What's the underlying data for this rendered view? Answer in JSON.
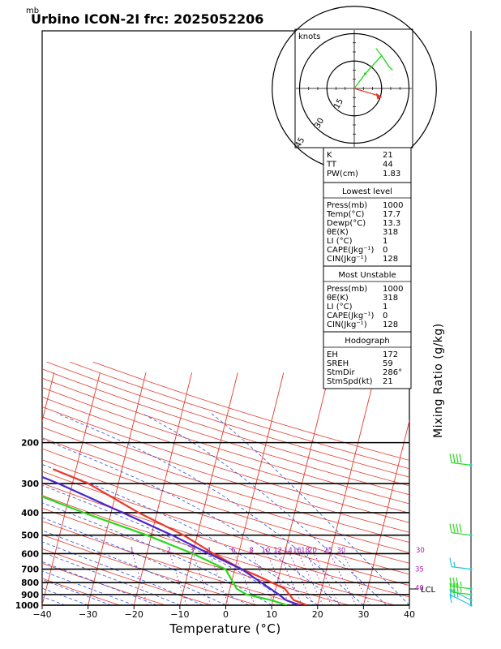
{
  "header": {
    "unit_label": "mb",
    "title": "Urbino ICON-2I frc: 2025052206"
  },
  "hodograph": {
    "unit_label": "knots",
    "rings": [
      "15",
      "30",
      "45"
    ]
  },
  "indices": {
    "top": [
      {
        "label": "K",
        "value": "21"
      },
      {
        "label": "TT",
        "value": "44"
      },
      {
        "label": "PW(cm)",
        "value": "1.83"
      }
    ],
    "lowest": {
      "title": "Lowest level",
      "rows": [
        {
          "label": "Press(mb)",
          "value": "1000"
        },
        {
          "label": "Temp(°C)",
          "value": "17.7"
        },
        {
          "label": "Dewp(°C)",
          "value": "13.3"
        },
        {
          "label": "θE(K)",
          "value": "318"
        },
        {
          "label": "LI (°C)",
          "value": "1"
        },
        {
          "label": "CAPE(Jkg⁻¹)",
          "value": "0"
        },
        {
          "label": "CIN(Jkg⁻¹)",
          "value": "128"
        }
      ]
    },
    "unstable": {
      "title": "Most Unstable",
      "rows": [
        {
          "label": "Press(mb)",
          "value": "1000"
        },
        {
          "label": "θE(K)",
          "value": "318"
        },
        {
          "label": "LI (°C)",
          "value": "1"
        },
        {
          "label": "CAPE(Jkg⁻¹)",
          "value": "0"
        },
        {
          "label": "CIN(Jkg⁻¹)",
          "value": "128"
        }
      ]
    },
    "hodo": {
      "title": "Hodograph",
      "rows": [
        {
          "label": "EH",
          "value": "172"
        },
        {
          "label": "SREH",
          "value": "59"
        },
        {
          "label": "StmDir",
          "value": "286°"
        },
        {
          "label": "StmSpd(kt)",
          "value": "21"
        }
      ]
    }
  },
  "mixing_ratio_label": "Mixing Ratio  (g/kg)",
  "lcl_label": "LCL",
  "chart_data": {
    "type": "line",
    "xlabel": "Temperature (°C)",
    "ylabel": "",
    "xlim": [
      -40,
      40
    ],
    "ylim": [
      1000,
      100
    ],
    "y_scale": "log",
    "pressure_ticks": [
      "1000",
      "900",
      "800",
      "700",
      "600",
      "500",
      "400",
      "300",
      "200"
    ],
    "temperature_ticks": [
      "−40",
      "−30",
      "−20",
      "−10",
      "0",
      "10",
      "20",
      "30",
      "40"
    ],
    "mixing_ratio_labels": [
      "1",
      "2",
      "3",
      "4",
      "6",
      "8",
      "10",
      "12",
      "14",
      "16",
      "18",
      "20",
      "25",
      "30"
    ],
    "wet_bulb_labels": [
      "30",
      "35",
      "40"
    ],
    "lcl_pressure": 945,
    "series": [
      {
        "color": "#e8392b",
        "pressure": [
          1000,
          950,
          850,
          750,
          700,
          600,
          500,
          400,
          300,
          260
        ],
        "values": [
          17.7,
          14.5,
          12.0,
          5.5,
          1.5,
          -5.5,
          -13.0,
          -24.0,
          -36.5,
          -45.0
        ]
      },
      {
        "color": "#2ad81f",
        "pressure": [
          1000,
          950,
          900,
          850,
          700,
          600,
          500,
          400,
          300,
          260
        ],
        "values": [
          13.3,
          9.5,
          4.0,
          1.5,
          -2.0,
          -10.0,
          -21.0,
          -36.0,
          -54.0,
          -59.0
        ]
      },
      {
        "color": "#4a25cf",
        "pressure": [
          1000,
          950,
          900,
          700,
          600,
          500,
          400,
          300,
          200,
          115
        ],
        "values": [
          16.0,
          12.8,
          11.0,
          1.5,
          -6.5,
          -15.5,
          -27.5,
          -43.0,
          -67.5,
          -98.0
        ]
      }
    ],
    "hodograph": {
      "u": [
        0,
        6,
        15,
        19,
        21
      ],
      "v": [
        0,
        8,
        18,
        12,
        10
      ],
      "storm_motion": [
        20,
        -6
      ]
    },
    "wind_barbs": [
      {
        "pressure": 1000,
        "speed_kt": 10
      },
      {
        "pressure": 950,
        "speed_kt": 15
      },
      {
        "pressure": 900,
        "speed_kt": 25
      },
      {
        "pressure": 850,
        "speed_kt": 25
      },
      {
        "pressure": 700,
        "speed_kt": 5
      },
      {
        "pressure": 500,
        "speed_kt": 40
      },
      {
        "pressure": 250,
        "speed_kt": 40
      }
    ]
  }
}
